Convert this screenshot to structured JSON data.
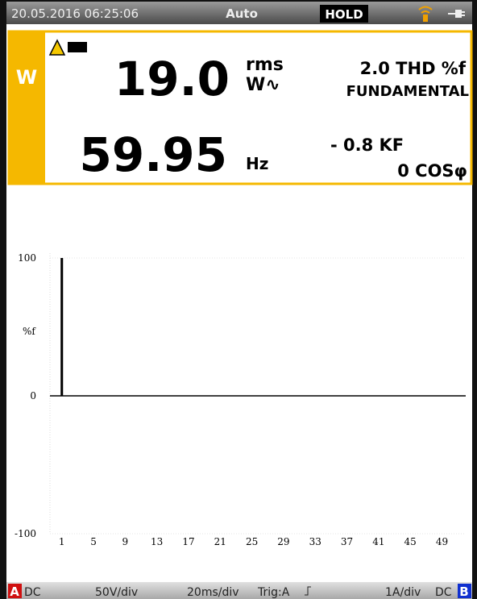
{
  "status_bar": {
    "datetime": "20.05.2016 06:25:06",
    "mode": "Auto",
    "hold": "HOLD"
  },
  "readout": {
    "channel": "W",
    "main_value": "19.0",
    "main_unit_top": "rms",
    "main_unit_bottom": "W∿",
    "thd": "2.0 THD %f",
    "fundamental": "FUNDAMENTAL",
    "freq": "59.95",
    "freq_unit": "Hz",
    "kf": "- 0.8 KF",
    "cos": "0 COSφ"
  },
  "chart_data": {
    "type": "bar",
    "ylabel": "%f",
    "x": [
      1
    ],
    "values": [
      100
    ],
    "color": "#000000",
    "xlim": [
      -0.5,
      52
    ],
    "xticks": [
      1,
      5,
      9,
      13,
      17,
      21,
      25,
      29,
      33,
      37,
      41,
      45,
      49
    ],
    "ylim": [
      -100,
      100
    ],
    "yticks": [
      -100,
      0,
      100
    ],
    "grid": true
  },
  "footer": {
    "ch_a": "A",
    "a_coupling": "DC",
    "a_scale": "50V/div",
    "timebase": "20ms/div",
    "trigger": "Trig:A",
    "b_scale": "1A/div",
    "b_coupling": "DC",
    "ch_b": "B"
  }
}
